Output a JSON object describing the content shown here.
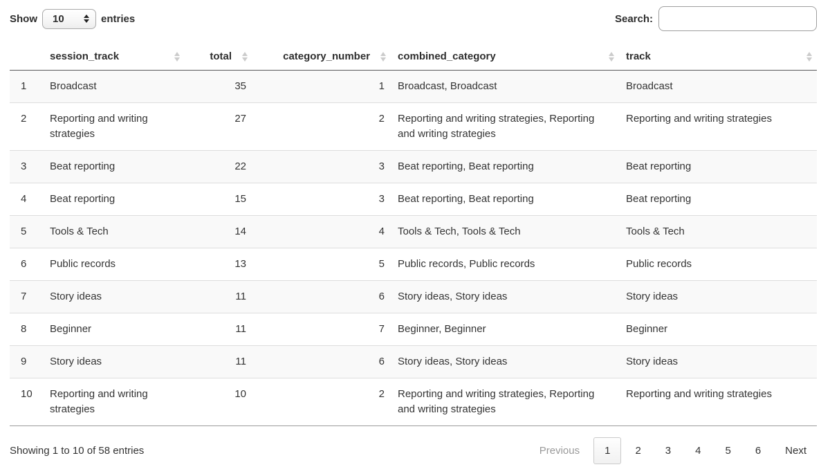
{
  "controls": {
    "show_label": "Show",
    "entries_label": "entries",
    "page_size": "10",
    "search_label": "Search:",
    "search_value": ""
  },
  "table": {
    "columns": [
      {
        "key": "row_index",
        "label": "",
        "sortable": false,
        "align": "left"
      },
      {
        "key": "session_track",
        "label": "session_track",
        "sortable": true,
        "align": "left"
      },
      {
        "key": "total",
        "label": "total",
        "sortable": true,
        "align": "right"
      },
      {
        "key": "category_number",
        "label": "category_number",
        "sortable": true,
        "align": "right"
      },
      {
        "key": "combined_category",
        "label": "combined_category",
        "sortable": true,
        "align": "left"
      },
      {
        "key": "track",
        "label": "track",
        "sortable": true,
        "align": "left"
      }
    ],
    "rows": [
      [
        "1",
        "Broadcast",
        "35",
        "1",
        "Broadcast, Broadcast",
        "Broadcast"
      ],
      [
        "2",
        "Reporting and writing strategies",
        "27",
        "2",
        "Reporting and writing strategies, Reporting and writing strategies",
        "Reporting and writing strategies"
      ],
      [
        "3",
        "Beat reporting",
        "22",
        "3",
        "Beat reporting, Beat reporting",
        "Beat reporting"
      ],
      [
        "4",
        "Beat reporting",
        "15",
        "3",
        "Beat reporting, Beat reporting",
        "Beat reporting"
      ],
      [
        "5",
        "Tools & Tech",
        "14",
        "4",
        "Tools & Tech, Tools & Tech",
        "Tools & Tech"
      ],
      [
        "6",
        "Public records",
        "13",
        "5",
        "Public records, Public records",
        "Public records"
      ],
      [
        "7",
        "Story ideas",
        "11",
        "6",
        "Story ideas, Story ideas",
        "Story ideas"
      ],
      [
        "8",
        "Beginner",
        "11",
        "7",
        "Beginner, Beginner",
        "Beginner"
      ],
      [
        "9",
        "Story ideas",
        "11",
        "6",
        "Story ideas, Story ideas",
        "Story ideas"
      ],
      [
        "10",
        "Reporting and writing strategies",
        "10",
        "2",
        "Reporting and writing strategies, Reporting and writing strategies",
        "Reporting and writing strategies"
      ]
    ]
  },
  "footer": {
    "info": "Showing 1 to 10 of 58 entries",
    "pagination": {
      "previous_label": "Previous",
      "next_label": "Next",
      "pages": [
        "1",
        "2",
        "3",
        "4",
        "5",
        "6"
      ],
      "current_page": "1"
    }
  },
  "colors": {
    "header_border": "#57575a",
    "table_bottom_border": "#9b9b9b",
    "row_divider": "#dddddd",
    "stripe_background": "#f9f9f9",
    "text": "#333333",
    "disabled_text": "#999999",
    "sort_icon": "#cccccc",
    "control_border": "#a9a9a9"
  }
}
